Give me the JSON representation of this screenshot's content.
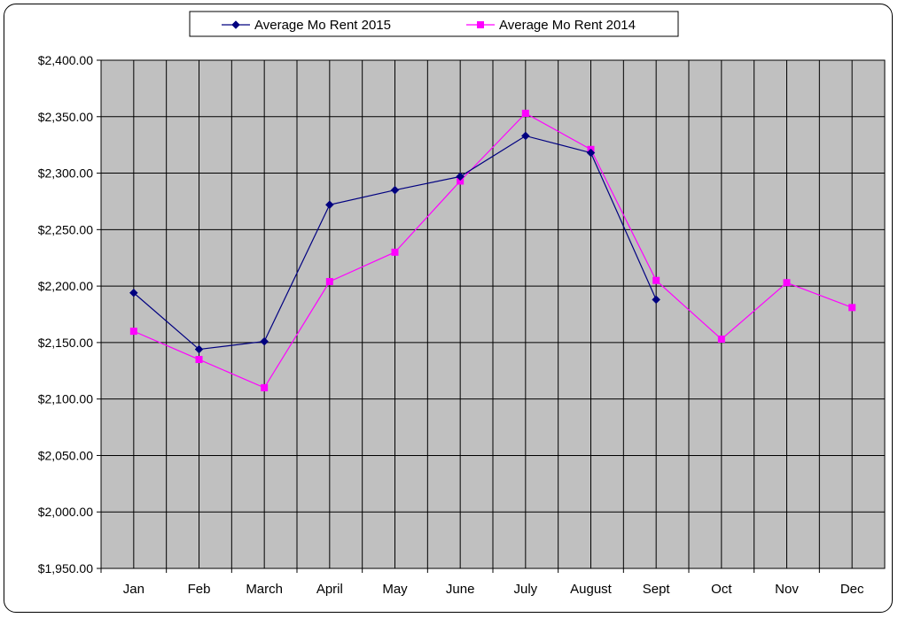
{
  "chart_data": {
    "type": "line",
    "categories": [
      "Jan",
      "Feb",
      "March",
      "April",
      "May",
      "June",
      "July",
      "August",
      "Sept",
      "Oct",
      "Nov",
      "Dec"
    ],
    "series": [
      {
        "name": "Average Mo Rent 2015",
        "color": "#000080",
        "marker": "diamond",
        "values": [
          2194,
          2144,
          2151,
          2272,
          2285,
          2297,
          2333,
          2318,
          2188,
          null,
          null,
          null
        ]
      },
      {
        "name": "Average Mo Rent 2014",
        "color": "#ff00ff",
        "marker": "square",
        "values": [
          2160,
          2135,
          2110,
          2204,
          2230,
          2293,
          2353,
          2321,
          2205,
          2153,
          2203,
          2181
        ]
      }
    ],
    "yticks": [
      "$2,400.00",
      "$2,350.00",
      "$2,300.00",
      "$2,250.00",
      "$2,200.00",
      "$2,150.00",
      "$2,100.00",
      "$2,050.00",
      "$2,000.00",
      "$1,950.00"
    ],
    "ylim": [
      1950,
      2400
    ],
    "grid": true,
    "plot_background": "#c0c0c0",
    "legend_position": "top"
  }
}
